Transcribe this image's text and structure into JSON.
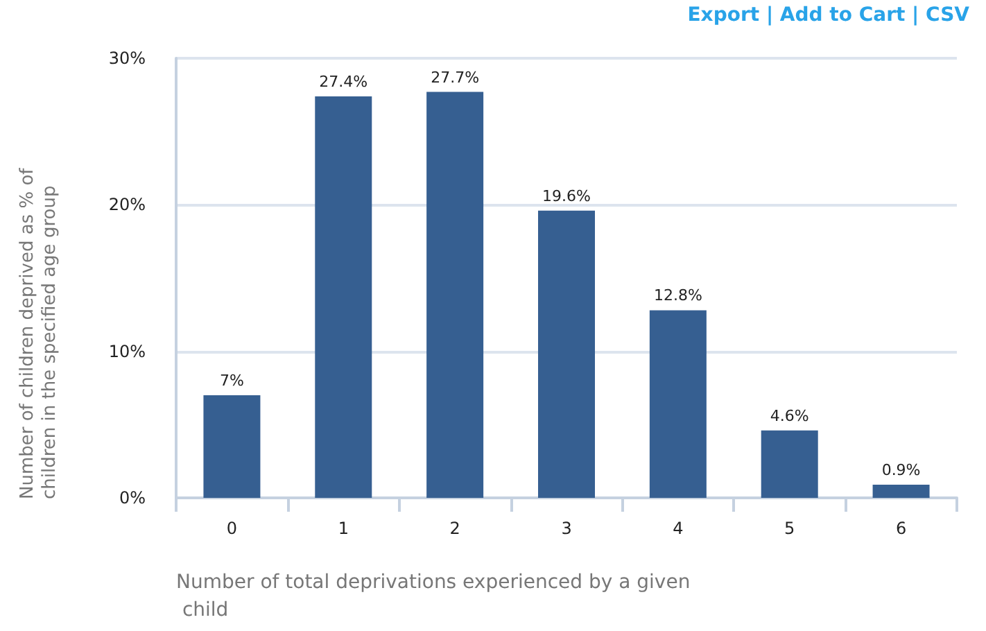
{
  "chart_data": {
    "type": "bar",
    "xlabel": "Number of total deprivations experienced by a given child",
    "ylabel": "Number of children deprived as % of children in the specified age group",
    "annotations": [
      "Export | Add to Cart | CSV"
    ],
    "categories": [
      "0",
      "1",
      "2",
      "3",
      "4",
      "5",
      "6"
    ],
    "values": [
      7,
      27.4,
      27.7,
      19.6,
      12.8,
      4.6,
      0.9
    ],
    "value_labels": [
      "7%",
      "27.4%",
      "27.7%",
      "19.6%",
      "12.8%",
      "4.6%",
      "0.9%"
    ],
    "color": "#365f91",
    "ylim": [
      0,
      30
    ],
    "yticks": [
      {
        "value": 0,
        "label": "0%"
      },
      {
        "value": 10,
        "label": "10%"
      },
      {
        "value": 20,
        "label": "20%"
      },
      {
        "value": 30,
        "label": "30%"
      }
    ],
    "grid": "y"
  }
}
